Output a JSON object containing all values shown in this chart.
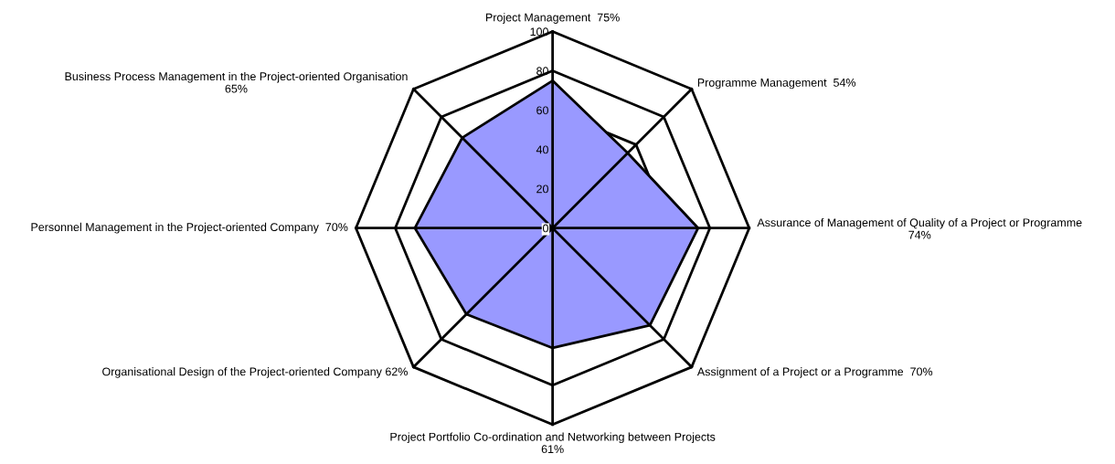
{
  "chart_data": {
    "type": "radar",
    "categories": [
      "Project Management  75%",
      "Programme Management  54%",
      "Assurance of Management of Quality of a Project or Programme 74%",
      "Assignment of a Project or a Programme  70%",
      "Project Portfolio Co-ordination and Networking between Projects 61%",
      "Organisational Design of the Project-oriented Company 62%",
      "Personnel Management in the Project-oriented Company  70%",
      "Business Process Management in the Project-oriented Organisation 65%"
    ],
    "series": [
      {
        "color": "#9999ff",
        "values": [
          75,
          54,
          74,
          70,
          61,
          62,
          70,
          65
        ]
      }
    ],
    "ylim": [
      0,
      100
    ],
    "yticks": [
      0,
      20,
      40,
      60,
      80,
      100
    ],
    "grid": true
  }
}
